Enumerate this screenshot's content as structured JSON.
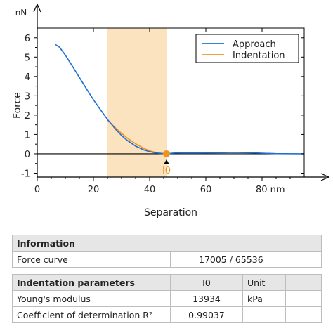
{
  "chart_data": {
    "type": "line",
    "title": "",
    "xlabel": "Separation",
    "ylabel": "Force",
    "x_unit": "nm",
    "y_unit": "nN",
    "xlim": [
      0,
      95
    ],
    "ylim": [
      -1.2,
      6.5
    ],
    "x_ticks": [
      0,
      20,
      40,
      60,
      80
    ],
    "x_tick_labels": [
      "0",
      "20",
      "40",
      "60",
      "80 nm"
    ],
    "y_ticks": [
      -1,
      0,
      1,
      2,
      3,
      4,
      5,
      6
    ],
    "y_tick_labels": [
      "-1",
      "0",
      "1",
      "2",
      "3",
      "4",
      "5",
      "6"
    ],
    "grid": false,
    "legend_position": "top-right",
    "zero_line": true,
    "highlight_region": {
      "x": [
        25,
        46
      ],
      "color": "#fbe3bf"
    },
    "series": [
      {
        "name": "Approach",
        "color": "#1f6fd1",
        "x": [
          6.5,
          8,
          10,
          12,
          15,
          18,
          20,
          22,
          25,
          28,
          30,
          32,
          35,
          38,
          40,
          42,
          44,
          46,
          48,
          50,
          55,
          60,
          65,
          70,
          75,
          80,
          85,
          95
        ],
        "y": [
          5.65,
          5.5,
          5.1,
          4.65,
          3.95,
          3.25,
          2.8,
          2.38,
          1.78,
          1.25,
          0.95,
          0.7,
          0.4,
          0.2,
          0.11,
          0.05,
          0.02,
          0.0,
          0.03,
          0.05,
          0.06,
          0.05,
          0.06,
          0.07,
          0.06,
          0.03,
          0.01,
          0.0
        ]
      },
      {
        "name": "Indentation",
        "color": "#f0921e",
        "x": [
          25,
          28,
          30,
          32,
          35,
          38,
          40,
          42,
          44,
          46
        ],
        "y": [
          1.75,
          1.32,
          1.06,
          0.82,
          0.52,
          0.28,
          0.16,
          0.08,
          0.03,
          0.0
        ]
      }
    ],
    "markers": [
      {
        "label": "I0",
        "x": 46,
        "y": 0,
        "color": "#f0921e"
      }
    ]
  },
  "info": {
    "header": "Information",
    "force_curve_label": "Force curve",
    "force_curve_value": "17005 / 65536"
  },
  "indentation": {
    "header": "Indentation parameters",
    "col_i0": "I0",
    "col_unit": "Unit",
    "rows": [
      {
        "label": "Young's modulus",
        "value": "13934",
        "unit": "kPa"
      },
      {
        "label": "Coefficient of determination R²",
        "value": "0.99037",
        "unit": ""
      }
    ]
  }
}
